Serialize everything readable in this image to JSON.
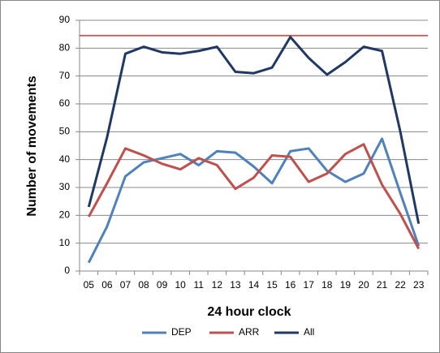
{
  "chart_data": {
    "type": "line",
    "y_label": "Number of movements",
    "x_label": "24 hour clock",
    "categories": [
      "05",
      "06",
      "07",
      "08",
      "09",
      "10",
      "11",
      "12",
      "13",
      "14",
      "15",
      "16",
      "17",
      "18",
      "19",
      "20",
      "21",
      "22",
      "23"
    ],
    "series": [
      {
        "name": "DEP",
        "color": "#4f81bd",
        "values": [
          3,
          16,
          34,
          39,
          40.5,
          42,
          38,
          43,
          42.5,
          37.5,
          31.5,
          43,
          44,
          36,
          32,
          35,
          47.5,
          28,
          9
        ]
      },
      {
        "name": "ARR",
        "color": "#c0504d",
        "values": [
          19.5,
          31.5,
          44,
          41.5,
          38.5,
          36.5,
          40.5,
          38,
          29.5,
          33.5,
          41.5,
          41,
          32,
          35,
          42,
          45.5,
          31,
          20.5,
          8
        ]
      },
      {
        "name": "All",
        "color": "#1f3864",
        "values": [
          23,
          48,
          78,
          80.5,
          78.5,
          78,
          79,
          80.5,
          71.5,
          71,
          73,
          84,
          76.5,
          70.5,
          75,
          80.5,
          79,
          50,
          17
        ]
      }
    ],
    "reference_line": {
      "value": 84.5,
      "color": "#e03030"
    },
    "ylim": [
      0,
      90
    ],
    "yticks": [
      0,
      10,
      20,
      30,
      40,
      50,
      60,
      70,
      80,
      90
    ],
    "grid": true
  }
}
